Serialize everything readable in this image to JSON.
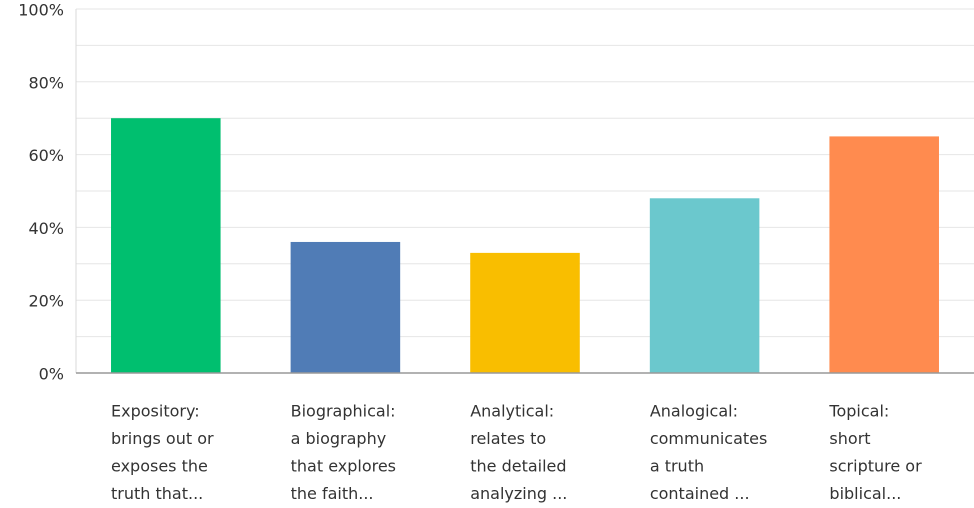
{
  "chart_data": {
    "type": "bar",
    "categories": [
      [
        "Expository:",
        "brings out or",
        "exposes the",
        "truth that..."
      ],
      [
        "Biographical:",
        "a biography",
        "that explores",
        "the faith..."
      ],
      [
        "Analytical:",
        "relates to",
        "the detailed",
        "analyzing ..."
      ],
      [
        "Analogical:",
        "communicates",
        "a truth",
        "contained ..."
      ],
      [
        "Topical:",
        "short",
        "scripture or",
        "biblical..."
      ]
    ],
    "values": [
      70,
      36,
      33,
      48,
      65
    ],
    "colors": [
      "#00bf6f",
      "#507cb6",
      "#f9be00",
      "#6bc8cd",
      "#ff8b4f"
    ],
    "ylim": [
      0,
      100
    ],
    "yticks": [
      {
        "value": 0,
        "label": "0%"
      },
      {
        "value": 20,
        "label": "20%"
      },
      {
        "value": 40,
        "label": "40%"
      },
      {
        "value": 60,
        "label": "60%"
      },
      {
        "value": 80,
        "label": "80%"
      },
      {
        "value": 100,
        "label": "100%"
      }
    ],
    "ygrid": [
      10,
      20,
      30,
      40,
      50,
      60,
      70,
      80,
      90,
      100
    ],
    "grid": true
  }
}
